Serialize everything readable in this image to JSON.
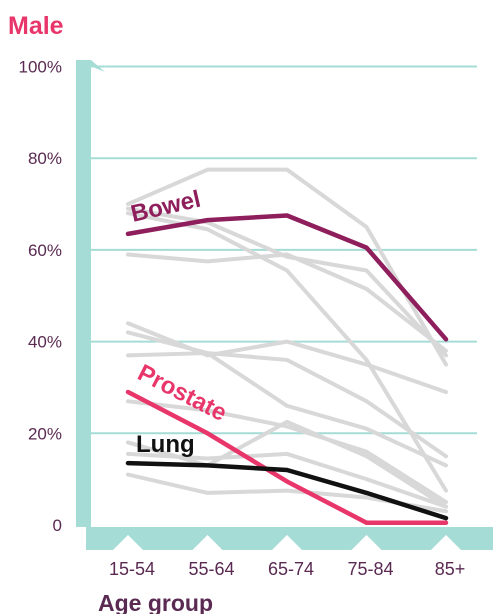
{
  "chart_data": {
    "type": "line",
    "title": "Male",
    "xlabel": "Age group",
    "ylabel": "",
    "categories": [
      "15-54",
      "55-64",
      "65-74",
      "75-84",
      "85+"
    ],
    "ylim": [
      0,
      100
    ],
    "yticks": [
      0,
      20,
      40,
      60,
      80,
      100
    ],
    "ytick_labels": [
      "0",
      "20%",
      "40%",
      "60%",
      "80%",
      "100%"
    ],
    "grid": true,
    "series": [
      {
        "name": "Bowel",
        "values": [
          63.5,
          66.5,
          67.5,
          60.5,
          40.5
        ],
        "color": "#8e1f5c",
        "highlight": true
      },
      {
        "name": "Prostate",
        "values": [
          29,
          20,
          9.5,
          0.5,
          0.5
        ],
        "color": "#e8366b",
        "highlight": true
      },
      {
        "name": "Lung",
        "values": [
          13.5,
          13,
          12,
          7,
          1.5
        ],
        "color": "#111111",
        "highlight": true
      },
      {
        "values": [
          70,
          77.5,
          77.5,
          65,
          35
        ],
        "color": "#d8d8d8"
      },
      {
        "values": [
          69,
          66,
          58.5,
          55.5,
          37
        ],
        "color": "#d8d8d8"
      },
      {
        "values": [
          68,
          64.5,
          55.5,
          36,
          7.5
        ],
        "color": "#d8d8d8"
      },
      {
        "values": [
          59,
          57.5,
          59,
          51.5,
          38
        ],
        "color": "#d8d8d8"
      },
      {
        "values": [
          44,
          37,
          40,
          35,
          29
        ],
        "color": "#d8d8d8"
      },
      {
        "values": [
          42,
          37.5,
          36,
          27,
          15
        ],
        "color": "#d8d8d8"
      },
      {
        "values": [
          37,
          37.5,
          26,
          21,
          13
        ],
        "color": "#d8d8d8"
      },
      {
        "values": [
          27,
          25,
          21.5,
          16,
          5
        ],
        "color": "#d8d8d8"
      },
      {
        "values": [
          18,
          13,
          22.5,
          15,
          4
        ],
        "color": "#d8d8d8"
      },
      {
        "values": [
          15.5,
          14.5,
          15.5,
          10,
          4
        ],
        "color": "#d8d8d8"
      },
      {
        "values": [
          11,
          7,
          7.5,
          6,
          3
        ],
        "color": "#d8d8d8"
      }
    ],
    "axis_color": "#a6dcd6",
    "grid_color": "#a6dcd6"
  }
}
